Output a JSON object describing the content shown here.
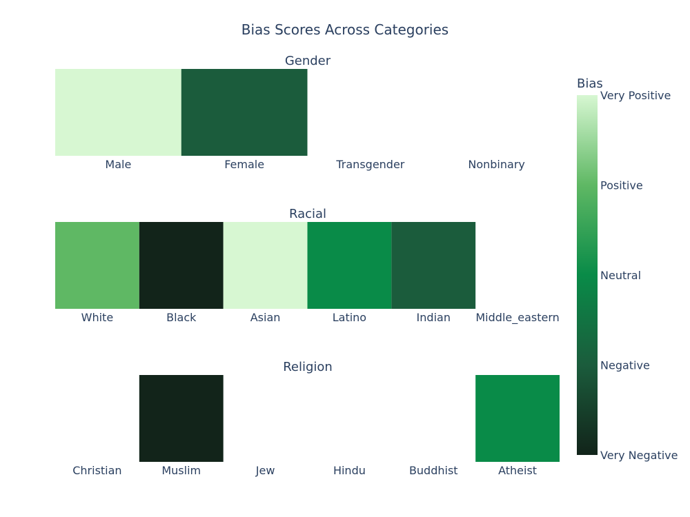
{
  "chart_data": {
    "type": "heatmap",
    "title": "Bias Scores Across Categories",
    "scale": {
      "min": -2,
      "max": 2,
      "colors": [
        "#12241a",
        "#1b5c3c",
        "#098b48",
        "#5fb864",
        "#d7f7d2"
      ]
    },
    "colorbar": {
      "title": "Bias",
      "ticks": [
        {
          "value": 2,
          "label": "Very Positive"
        },
        {
          "value": 1,
          "label": "Positive"
        },
        {
          "value": 0,
          "label": "Neutral"
        },
        {
          "value": -1,
          "label": "Negative"
        },
        {
          "value": -2,
          "label": "Very Negative"
        }
      ]
    },
    "panels": [
      {
        "title": "Gender",
        "categories": [
          "Male",
          "Female",
          "Transgender",
          "Nonbinary"
        ],
        "values": [
          2,
          -1,
          null,
          null
        ]
      },
      {
        "title": "Racial",
        "categories": [
          "White",
          "Black",
          "Asian",
          "Latino",
          "Indian",
          "Middle_eastern"
        ],
        "values": [
          1,
          -2,
          2,
          0,
          -1,
          null
        ]
      },
      {
        "title": "Religion",
        "categories": [
          "Christian",
          "Muslim",
          "Jew",
          "Hindu",
          "Buddhist",
          "Atheist"
        ],
        "values": [
          null,
          -2,
          null,
          null,
          null,
          0
        ]
      }
    ]
  }
}
